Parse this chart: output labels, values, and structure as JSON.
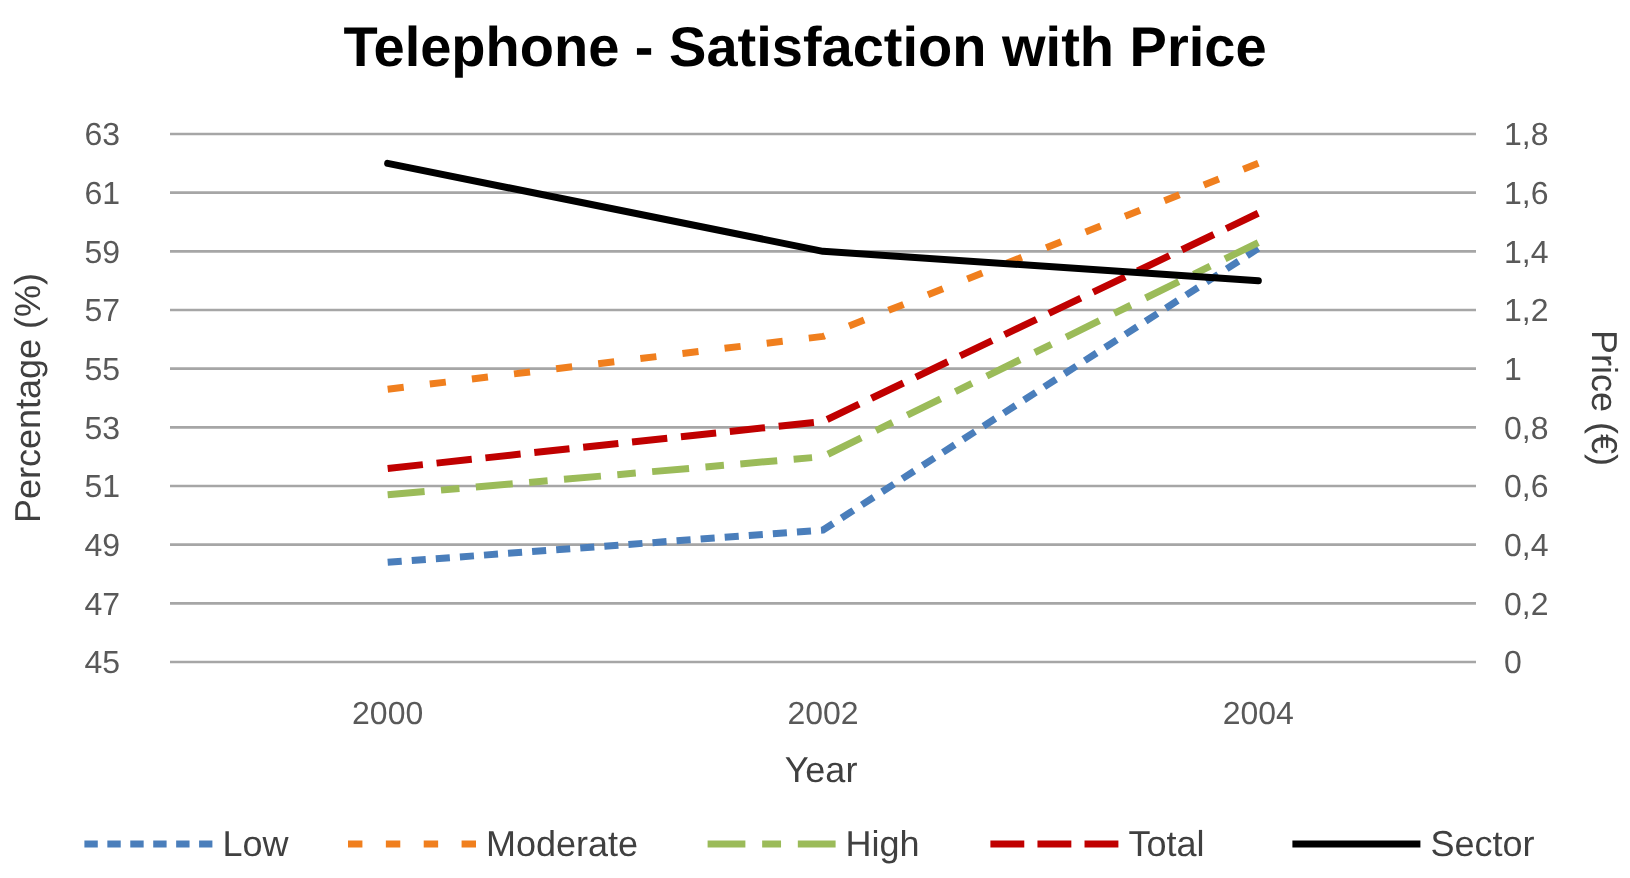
{
  "chart_data": {
    "type": "line",
    "title": "Telephone - Satisfaction with Price",
    "xlabel": "Year",
    "ylabel": "Percentage (%)",
    "y2label": "Price (€)",
    "categories": [
      "2000",
      "2002",
      "2004"
    ],
    "series": [
      {
        "name": "Low",
        "color": "#4a7ebb",
        "values": [
          48.4,
          49.5,
          59.1
        ],
        "line_style": "dashed"
      },
      {
        "name": "Moderate",
        "color": "#f07f1e",
        "values": [
          54.3,
          56.1,
          62
        ],
        "line_style": "dashed"
      },
      {
        "name": "High",
        "color": "#9bbb59",
        "values": [
          50.7,
          52,
          59.3
        ],
        "line_style": "dashed"
      },
      {
        "name": "Total",
        "color": "#c00000",
        "values": [
          51.6,
          53.2,
          60.3
        ],
        "line_style": "dashed"
      },
      {
        "name": "Sector",
        "color": "#000000",
        "values": [
          1.7,
          1.4,
          1.3
        ],
        "line_style": "solid",
        "axis": "y2"
      }
    ],
    "ylim": [
      45,
      63
    ],
    "yticks": [
      45,
      47,
      49,
      51,
      53,
      55,
      57,
      59,
      61,
      63
    ],
    "y2lim": [
      0,
      1.8
    ],
    "y2ticks": [
      0,
      {
        "value": 0.2,
        "label": "0,2"
      },
      {
        "value": 0.4,
        "label": "0,4"
      },
      {
        "value": 0.6,
        "label": "0,6"
      },
      {
        "value": 0.8,
        "label": "0,8"
      },
      1,
      {
        "value": 1.2,
        "label": "1,2"
      },
      {
        "value": 1.4,
        "label": "1,4"
      },
      {
        "value": 1.6,
        "label": "1,6"
      },
      {
        "value": 1.8,
        "label": "1,8"
      }
    ],
    "grid": "y",
    "legend": "bottom",
    "marker": "none"
  }
}
